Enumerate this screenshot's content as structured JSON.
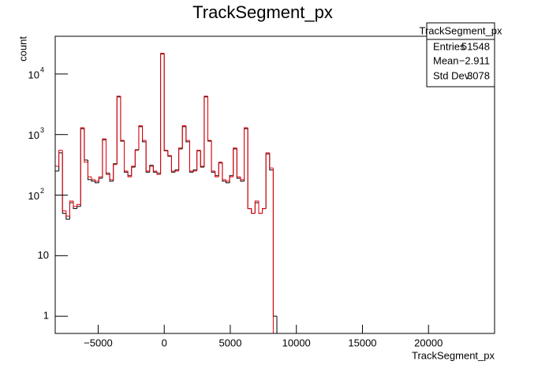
{
  "chart_data": {
    "type": "histogram",
    "title": "TrackSegment_px",
    "x_label": "TrackSegment_px",
    "y_label": "count",
    "log_y": true,
    "bins": [
      -8250,
      -7975,
      -7700,
      -7425,
      -7150,
      -6875,
      -6600,
      -6325,
      -6050,
      -5775,
      -5500,
      -5225,
      -4950,
      -4675,
      -4400,
      -4125,
      -3850,
      -3575,
      -3300,
      -3025,
      -2750,
      -2475,
      -2200,
      -1925,
      -1650,
      -1375,
      -1100,
      -825,
      -550,
      -275,
      0,
      275,
      550,
      825,
      1100,
      1375,
      1650,
      1925,
      2200,
      2475,
      2750,
      3025,
      3300,
      3575,
      3850,
      4125,
      4400,
      4675,
      4950,
      5225,
      5500,
      5775,
      6050,
      6325,
      6600,
      6875,
      7150,
      7425,
      7700,
      7975,
      8250,
      8525
    ],
    "series": [
      {
        "color": "#000000",
        "values": [
          250,
          500,
          50,
          40,
          75,
          60,
          65,
          1250,
          380,
          180,
          170,
          160,
          190,
          820,
          230,
          170,
          330,
          4200,
          780,
          240,
          210,
          290,
          560,
          1350,
          760,
          240,
          310,
          240,
          230,
          21500,
          540,
          440,
          240,
          260,
          580,
          1350,
          760,
          240,
          260,
          540,
          290,
          4200,
          780,
          240,
          210,
          340,
          170,
          160,
          210,
          580,
          190,
          170,
          1250,
          60,
          50,
          75,
          50,
          60,
          480,
          260,
          1
        ]
      },
      {
        "color": "#e8000b",
        "values": [
          300,
          550,
          55,
          45,
          80,
          65,
          70,
          1300,
          350,
          200,
          180,
          170,
          200,
          850,
          220,
          180,
          320,
          4300,
          800,
          250,
          200,
          300,
          550,
          1400,
          800,
          250,
          300,
          250,
          220,
          22000,
          550,
          450,
          250,
          250,
          600,
          1400,
          800,
          250,
          250,
          550,
          300,
          4300,
          800,
          250,
          200,
          350,
          180,
          170,
          200,
          600,
          200,
          180,
          1300,
          60,
          50,
          80,
          50,
          60,
          500,
          280,
          0
        ]
      }
    ],
    "xlim": [
      -8250,
      25000
    ],
    "ylim": [
      0.52,
      42000
    ],
    "xticks": [
      {
        "value": -5000,
        "label": "−5000"
      },
      0,
      5000,
      10000,
      15000,
      20000
    ],
    "yticks": [
      1,
      {
        "value": 10,
        "label": "10"
      },
      {
        "value": 100,
        "label": "10",
        "exponent": "2"
      },
      {
        "value": 1000,
        "label": "10",
        "exponent": "3"
      },
      {
        "value": 10000,
        "label": "10",
        "exponent": "4"
      }
    ],
    "stats": {
      "title": "TrackSegment_px",
      "rows": [
        [
          "Entries",
          "51548"
        ],
        [
          "Mean",
          "−2.911"
        ],
        [
          "Std Dev",
          "3078"
        ]
      ]
    }
  }
}
